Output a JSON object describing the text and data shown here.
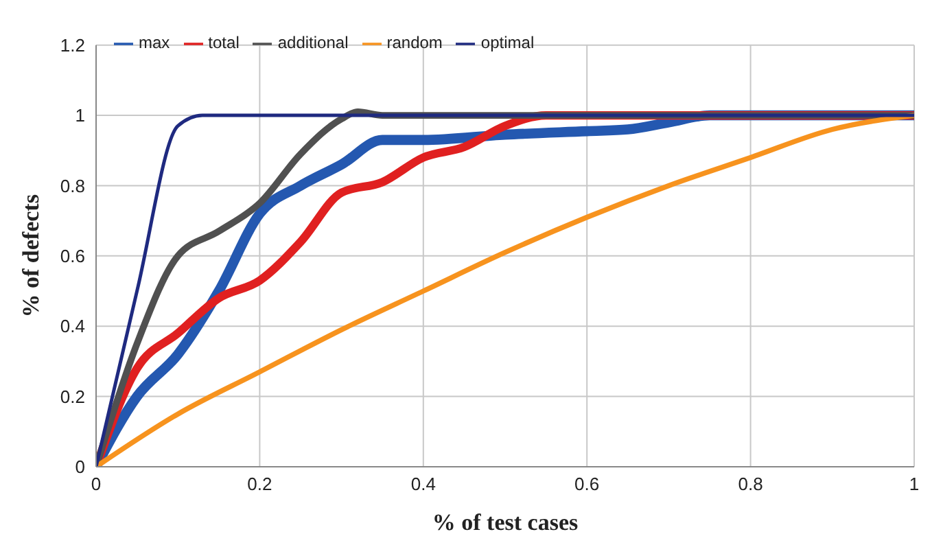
{
  "chart_data": {
    "type": "line",
    "xlabel": "% of test cases",
    "ylabel": "% of defects",
    "xlim": [
      0,
      1
    ],
    "xticks": [
      0,
      0.2,
      0.4,
      0.6,
      0.8,
      1
    ],
    "ylim": [
      0,
      1.2
    ],
    "yticks": [
      0,
      0.2,
      0.4,
      0.6,
      0.8,
      1,
      1.2
    ],
    "grid": true,
    "legend": "top left",
    "marker": "none",
    "line_style": "solid",
    "series": [
      {
        "name": "max",
        "color": "#2458b0",
        "x": [
          0,
          0.05,
          0.1,
          0.15,
          0.2,
          0.25,
          0.3,
          0.35,
          0.4,
          0.5,
          0.6,
          0.65,
          0.7,
          0.75,
          1
        ],
        "values": [
          0,
          0.2,
          0.32,
          0.5,
          0.72,
          0.8,
          0.86,
          0.93,
          0.93,
          0.945,
          0.955,
          0.96,
          0.98,
          1,
          1
        ]
      },
      {
        "name": "total",
        "color": "#e02020",
        "x": [
          0,
          0.05,
          0.1,
          0.15,
          0.2,
          0.25,
          0.3,
          0.35,
          0.4,
          0.45,
          0.5,
          0.55,
          1
        ],
        "values": [
          0,
          0.28,
          0.38,
          0.48,
          0.53,
          0.64,
          0.78,
          0.81,
          0.88,
          0.91,
          0.97,
          1,
          1
        ]
      },
      {
        "name": "additional",
        "color": "#505050",
        "x": [
          0,
          0.05,
          0.1,
          0.15,
          0.2,
          0.25,
          0.3,
          0.32,
          0.35,
          1
        ],
        "values": [
          0,
          0.35,
          0.6,
          0.67,
          0.75,
          0.89,
          0.99,
          1.01,
          1,
          1
        ]
      },
      {
        "name": "random",
        "color": "#f7931e",
        "x": [
          0,
          0.1,
          0.2,
          0.3,
          0.4,
          0.5,
          0.6,
          0.7,
          0.8,
          0.9,
          1
        ],
        "values": [
          0,
          0.15,
          0.27,
          0.39,
          0.5,
          0.61,
          0.71,
          0.8,
          0.88,
          0.96,
          1
        ]
      },
      {
        "name": "optimal",
        "color": "#1f2a80",
        "x": [
          0,
          0.05,
          0.1,
          0.13,
          1
        ],
        "values": [
          0,
          0.5,
          0.97,
          1,
          1
        ]
      }
    ]
  }
}
